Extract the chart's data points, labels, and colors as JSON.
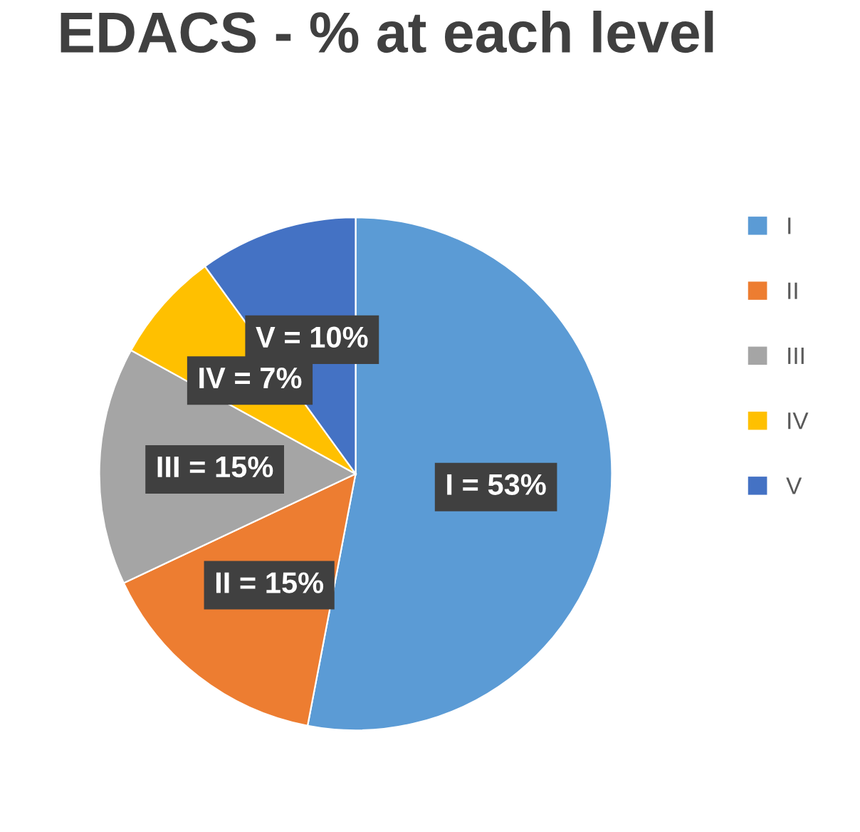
{
  "chart_data": {
    "type": "pie",
    "title": "EDACS - % at each level",
    "categories": [
      "I",
      "II",
      "III",
      "IV",
      "V"
    ],
    "values": [
      53,
      15,
      15,
      7,
      10
    ],
    "colors": [
      "#5b9bd5",
      "#ed7d31",
      "#a5a5a5",
      "#ffc000",
      "#4472c4"
    ],
    "value_labels": [
      "I = 53%",
      "II = 15%",
      "III = 15%",
      "IV = 7%",
      "V = 10%"
    ],
    "legend": "right"
  }
}
